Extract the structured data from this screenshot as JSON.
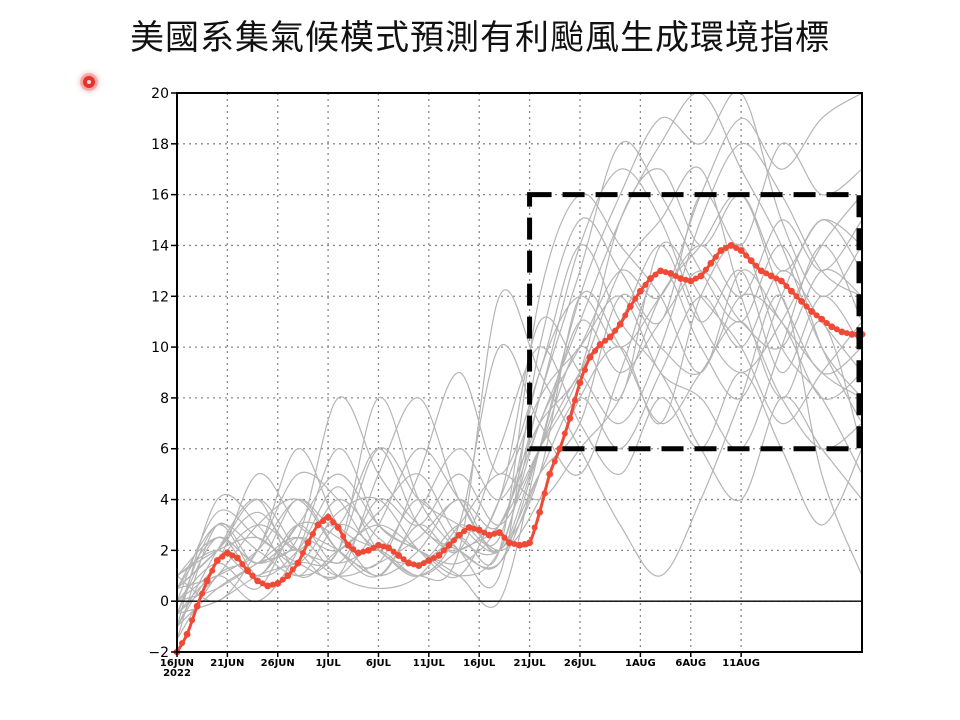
{
  "title": "美國系集氣候模式預測有利颱風生成環境指標",
  "chart_data": {
    "type": "line",
    "x_unit": "day",
    "x_start": "2022-06-16",
    "xlim": [
      0,
      68
    ],
    "ylim": [
      -2,
      20
    ],
    "y_ticks": [
      -2,
      0,
      2,
      4,
      6,
      8,
      10,
      12,
      14,
      16,
      18,
      20
    ],
    "x_ticks": [
      {
        "day": 0,
        "label": "16JUN",
        "sub": "2022"
      },
      {
        "day": 5,
        "label": "21JUN",
        "sub": ""
      },
      {
        "day": 10,
        "label": "26JUN",
        "sub": ""
      },
      {
        "day": 15,
        "label": "1JUL",
        "sub": ""
      },
      {
        "day": 20,
        "label": "6JUL",
        "sub": ""
      },
      {
        "day": 25,
        "label": "11JUL",
        "sub": ""
      },
      {
        "day": 30,
        "label": "16JUL",
        "sub": ""
      },
      {
        "day": 35,
        "label": "21JUL",
        "sub": ""
      },
      {
        "day": 40,
        "label": "26JUL",
        "sub": ""
      },
      {
        "day": 46,
        "label": "1AUG",
        "sub": ""
      },
      {
        "day": 51,
        "label": "6AUG",
        "sub": ""
      },
      {
        "day": 56,
        "label": "11AUG",
        "sub": ""
      }
    ],
    "grid": true,
    "zero_line": true,
    "highlight_box": {
      "x": [
        35,
        68
      ],
      "y": [
        6,
        16
      ],
      "style": "dashed"
    },
    "ensemble_mean": {
      "color": "#f04a36",
      "x": [
        0,
        1,
        2,
        3,
        4,
        5,
        6,
        7,
        8,
        9,
        10,
        11,
        12,
        13,
        14,
        15,
        16,
        17,
        18,
        19,
        20,
        21,
        22,
        23,
        24,
        25,
        26,
        27,
        28,
        29,
        30,
        31,
        32,
        33,
        34,
        35,
        36,
        37,
        38,
        39,
        40,
        41,
        42,
        43,
        44,
        45,
        46,
        47,
        48,
        49,
        50,
        51,
        52,
        53,
        54,
        55,
        56,
        57,
        58,
        59,
        60,
        61,
        62,
        63,
        64,
        65,
        66,
        67,
        68
      ],
      "y": [
        -2.0,
        -1.3,
        -0.2,
        0.8,
        1.6,
        1.9,
        1.7,
        1.2,
        0.8,
        0.6,
        0.7,
        1.0,
        1.5,
        2.3,
        3.0,
        3.3,
        2.9,
        2.2,
        1.9,
        2.0,
        2.2,
        2.1,
        1.8,
        1.5,
        1.4,
        1.6,
        1.8,
        2.2,
        2.6,
        2.9,
        2.8,
        2.6,
        2.7,
        2.3,
        2.2,
        2.3,
        3.5,
        5.0,
        6.0,
        7.2,
        8.6,
        9.6,
        10.1,
        10.4,
        10.9,
        11.6,
        12.2,
        12.7,
        13.0,
        12.9,
        12.7,
        12.6,
        12.8,
        13.3,
        13.8,
        14.0,
        13.8,
        13.4,
        13.0,
        12.8,
        12.6,
        12.2,
        11.8,
        11.4,
        11.1,
        10.8,
        10.6,
        10.5,
        10.5
      ]
    },
    "members": [
      {
        "x": [
          0,
          4,
          8,
          12,
          16,
          20,
          24,
          28,
          32,
          36,
          40,
          44,
          48,
          52,
          56,
          60,
          64,
          68
        ],
        "y": [
          -1.5,
          3.0,
          1.5,
          4.0,
          2.0,
          1.0,
          3.5,
          6.0,
          4.0,
          7.0,
          9.0,
          13.0,
          15.0,
          17.0,
          12.0,
          8.0,
          11.0,
          6.0
        ]
      },
      {
        "x": [
          0,
          4,
          8,
          12,
          16,
          20,
          24,
          28,
          32,
          36,
          40,
          44,
          48,
          52,
          56,
          60,
          64,
          68
        ],
        "y": [
          -0.5,
          1.0,
          0.0,
          2.0,
          6.0,
          3.0,
          2.0,
          1.0,
          0.0,
          6.0,
          12.0,
          16.0,
          19.0,
          18.0,
          20.0,
          15.0,
          12.0,
          14.0
        ]
      },
      {
        "x": [
          0,
          4,
          8,
          12,
          16,
          20,
          24,
          28,
          32,
          36,
          40,
          44,
          48,
          52,
          56,
          60,
          64,
          68
        ],
        "y": [
          0.5,
          2.0,
          4.0,
          2.0,
          1.0,
          5.0,
          8.0,
          4.0,
          2.0,
          4.0,
          8.0,
          10.0,
          7.0,
          12.0,
          14.0,
          10.0,
          8.0,
          5.0
        ]
      },
      {
        "x": [
          0,
          4,
          8,
          12,
          16,
          20,
          24,
          28,
          32,
          36,
          40,
          44,
          48,
          52,
          56,
          60,
          64,
          68
        ],
        "y": [
          -1.0,
          4.0,
          3.0,
          1.0,
          3.0,
          2.0,
          1.0,
          3.0,
          10.0,
          7.0,
          5.0,
          9.0,
          13.0,
          10.0,
          8.0,
          12.0,
          15.0,
          13.0
        ]
      },
      {
        "x": [
          0,
          4,
          8,
          12,
          16,
          20,
          24,
          28,
          32,
          36,
          40,
          44,
          48,
          52,
          56,
          60,
          64,
          68
        ],
        "y": [
          1.0,
          0.0,
          2.0,
          5.0,
          4.0,
          2.0,
          4.0,
          2.0,
          1.0,
          10.0,
          15.0,
          13.0,
          11.0,
          16.0,
          14.0,
          18.0,
          16.0,
          17.0
        ]
      },
      {
        "x": [
          0,
          4,
          8,
          12,
          16,
          20,
          24,
          28,
          32,
          36,
          40,
          44,
          48,
          52,
          56,
          60,
          64,
          68
        ],
        "y": [
          -0.5,
          2.5,
          1.0,
          3.0,
          1.5,
          4.0,
          3.0,
          5.0,
          3.0,
          6.0,
          10.0,
          8.0,
          14.0,
          12.0,
          10.0,
          7.0,
          9.0,
          11.0
        ]
      },
      {
        "x": [
          0,
          4,
          8,
          12,
          16,
          20,
          24,
          28,
          32,
          36,
          40,
          44,
          48,
          52,
          56,
          60,
          64,
          68
        ],
        "y": [
          0.0,
          1.5,
          5.0,
          3.0,
          2.0,
          1.0,
          2.0,
          4.0,
          2.0,
          8.0,
          13.0,
          18.0,
          16.0,
          13.0,
          11.0,
          14.0,
          10.0,
          7.0
        ]
      },
      {
        "x": [
          0,
          4,
          8,
          12,
          16,
          20,
          24,
          28,
          32,
          36,
          40,
          44,
          48,
          52,
          56,
          60,
          64,
          68
        ],
        "y": [
          -1.0,
          0.5,
          1.5,
          2.5,
          8.0,
          5.0,
          3.0,
          2.0,
          4.0,
          11.0,
          9.0,
          7.0,
          10.0,
          15.0,
          18.0,
          16.0,
          13.0,
          12.0
        ]
      },
      {
        "x": [
          0,
          4,
          8,
          12,
          16,
          20,
          24,
          28,
          32,
          36,
          40,
          44,
          48,
          52,
          56,
          60,
          64,
          68
        ],
        "y": [
          0.5,
          3.0,
          2.0,
          1.0,
          2.0,
          6.0,
          4.0,
          3.0,
          2.0,
          5.0,
          7.0,
          12.0,
          10.0,
          9.0,
          12.0,
          11.0,
          8.0,
          9.0
        ]
      },
      {
        "x": [
          0,
          4,
          8,
          12,
          16,
          20,
          24,
          28,
          32,
          36,
          40,
          44,
          48,
          52,
          56,
          60,
          64,
          68
        ],
        "y": [
          -0.5,
          1.0,
          3.0,
          4.0,
          2.0,
          1.5,
          5.0,
          9.0,
          5.0,
          9.0,
          14.0,
          11.0,
          9.0,
          6.0,
          4.0,
          8.0,
          6.0,
          4.0
        ]
      },
      {
        "x": [
          0,
          4,
          8,
          12,
          16,
          20,
          24,
          28,
          32,
          36,
          40,
          44,
          48,
          52,
          56,
          60,
          64,
          68
        ],
        "y": [
          1.0,
          2.0,
          1.0,
          3.0,
          5.0,
          3.0,
          2.0,
          1.5,
          3.0,
          7.0,
          11.0,
          15.0,
          18.0,
          20.0,
          17.0,
          14.0,
          10.0,
          8.0
        ]
      },
      {
        "x": [
          0,
          4,
          8,
          12,
          16,
          20,
          24,
          28,
          32,
          36,
          40,
          44,
          48,
          52,
          56,
          60,
          64,
          68
        ],
        "y": [
          0.0,
          3.5,
          2.5,
          1.5,
          1.0,
          3.0,
          6.0,
          4.0,
          2.0,
          6.0,
          9.0,
          11.0,
          14.0,
          11.0,
          13.0,
          9.0,
          12.0,
          10.0
        ]
      },
      {
        "x": [
          0,
          4,
          8,
          12,
          16,
          20,
          24,
          28,
          32,
          36,
          40,
          44,
          48,
          52,
          56,
          60,
          64,
          68
        ],
        "y": [
          -1.5,
          1.0,
          2.0,
          6.0,
          3.0,
          2.0,
          1.0,
          2.0,
          12.0,
          9.0,
          6.0,
          3.0,
          1.0,
          4.0,
          8.0,
          12.0,
          5.0,
          1.0
        ]
      },
      {
        "x": [
          0,
          4,
          8,
          12,
          16,
          20,
          24,
          28,
          32,
          36,
          40,
          44,
          48,
          52,
          56,
          60,
          64,
          68
        ],
        "y": [
          0.5,
          2.0,
          3.5,
          2.0,
          4.0,
          2.5,
          1.5,
          3.0,
          2.5,
          9.0,
          12.0,
          10.0,
          12.0,
          14.0,
          12.0,
          15.0,
          13.0,
          15.0
        ]
      },
      {
        "x": [
          0,
          4,
          8,
          12,
          16,
          20,
          24,
          28,
          32,
          36,
          40,
          44,
          48,
          52,
          56,
          60,
          64,
          68
        ],
        "y": [
          -0.5,
          0.0,
          1.0,
          1.5,
          2.0,
          8.0,
          4.0,
          2.0,
          1.5,
          5.0,
          8.0,
          6.0,
          9.0,
          12.0,
          10.0,
          13.0,
          11.0,
          9.0
        ]
      },
      {
        "x": [
          0,
          4,
          8,
          12,
          16,
          20,
          24,
          28,
          32,
          36,
          40,
          44,
          48,
          52,
          56,
          60,
          64,
          68
        ],
        "y": [
          1.0,
          2.5,
          1.5,
          2.0,
          1.0,
          1.5,
          2.5,
          4.0,
          3.0,
          8.0,
          14.0,
          17.0,
          15.0,
          11.0,
          9.0,
          11.0,
          14.0,
          16.0
        ]
      },
      {
        "x": [
          0,
          4,
          8,
          12,
          16,
          20,
          24,
          28,
          32,
          36,
          40,
          44,
          48,
          52,
          56,
          60,
          64,
          68
        ],
        "y": [
          0.0,
          1.5,
          0.5,
          3.0,
          2.5,
          1.0,
          3.0,
          2.0,
          6.0,
          10.0,
          7.0,
          5.0,
          8.0,
          6.0,
          9.0,
          6.0,
          3.0,
          6.0
        ]
      },
      {
        "x": [
          0,
          4,
          8,
          12,
          16,
          20,
          24,
          28,
          32,
          36,
          40,
          44,
          48,
          52,
          56,
          60,
          64,
          68
        ],
        "y": [
          -1.0,
          2.0,
          4.0,
          1.0,
          2.0,
          3.0,
          2.0,
          1.0,
          2.0,
          7.0,
          10.0,
          13.0,
          12.0,
          16.0,
          19.0,
          17.0,
          19.0,
          20.0
        ]
      },
      {
        "x": [
          0,
          4,
          8,
          12,
          16,
          20,
          24,
          28,
          32,
          36,
          40,
          44,
          48,
          52,
          56,
          60,
          64,
          68
        ],
        "y": [
          0.5,
          1.0,
          2.0,
          4.0,
          3.0,
          6.0,
          3.0,
          2.0,
          1.5,
          6.0,
          11.0,
          9.0,
          11.0,
          13.0,
          11.0,
          10.0,
          13.0,
          12.0
        ]
      },
      {
        "x": [
          0,
          4,
          8,
          12,
          16,
          20,
          24,
          28,
          32,
          36,
          40,
          44,
          48,
          52,
          56,
          60,
          64,
          68
        ],
        "y": [
          -0.5,
          3.0,
          1.0,
          2.0,
          4.5,
          2.0,
          1.5,
          2.5,
          2.0,
          12.0,
          16.0,
          14.0,
          12.0,
          9.0,
          13.0,
          11.0,
          9.0,
          8.0
        ]
      },
      {
        "x": [
          0,
          4,
          8,
          12,
          16,
          20,
          24,
          28,
          32,
          36,
          40,
          44,
          48,
          52,
          56,
          60,
          64,
          68
        ],
        "y": [
          0.0,
          0.5,
          1.5,
          2.5,
          1.0,
          0.5,
          1.0,
          3.0,
          5.0,
          4.0,
          6.0,
          8.0,
          12.0,
          14.0,
          16.0,
          12.0,
          9.0,
          10.0
        ]
      },
      {
        "x": [
          0,
          4,
          8,
          12,
          16,
          20,
          24,
          28,
          32,
          36,
          40,
          44,
          48,
          52,
          56,
          60,
          64,
          68
        ],
        "y": [
          1.0,
          2.0,
          2.5,
          1.5,
          3.5,
          4.0,
          2.0,
          1.0,
          4.0,
          8.0,
          10.0,
          12.0,
          9.0,
          8.0,
          6.0,
          10.0,
          14.0,
          11.0
        ]
      },
      {
        "x": [
          0,
          4,
          8,
          12,
          16,
          20,
          24,
          28,
          32,
          36,
          40,
          44,
          48,
          52,
          56,
          60,
          64,
          68
        ],
        "y": [
          -1.0,
          1.5,
          3.0,
          2.0,
          1.5,
          2.0,
          1.0,
          2.0,
          3.0,
          6.0,
          9.0,
          15.0,
          17.0,
          14.0,
          16.0,
          13.0,
          15.0,
          14.0
        ]
      },
      {
        "x": [
          0,
          4,
          8,
          12,
          16,
          20,
          24,
          28,
          32,
          36,
          40,
          44,
          48,
          52,
          56,
          60,
          64,
          68
        ],
        "y": [
          0.5,
          2.5,
          1.5,
          2.5,
          2.0,
          3.5,
          5.0,
          2.5,
          2.0,
          5.0,
          12.0,
          10.0,
          7.0,
          9.0,
          11.0,
          8.0,
          6.0,
          7.0
        ]
      }
    ]
  }
}
